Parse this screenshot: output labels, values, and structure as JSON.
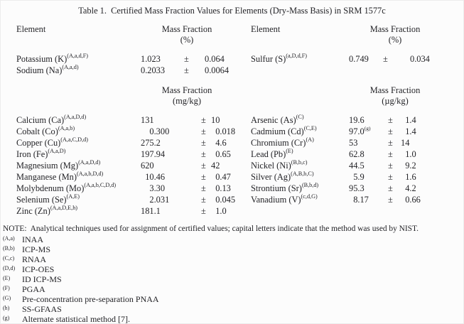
{
  "title": "Table 1.  Certified Mass Fraction Values for Elements (Dry-Mass Basis) in SRM 1577c",
  "headers": {
    "element_label": "Element",
    "mass_fraction_label": "Mass Fraction",
    "unit_percent": "(%)",
    "unit_mg": "(mg/kg)",
    "unit_ug": "(µg/kg)"
  },
  "percent_left_rows": [
    {
      "name": "Potassium (K)",
      "sup": "(A,a,d,F)",
      "value": "1.023",
      "pm": "±",
      "unc": "0.064"
    },
    {
      "name": "Sodium (Na)",
      "sup": "(A,a,d)",
      "value": "0.2033",
      "pm": "±",
      "unc": "0.0064"
    }
  ],
  "percent_right_rows": [
    {
      "name": "Sulfur (S)",
      "sup": "(a,D,d,F)",
      "value": "0.749",
      "pm": "±",
      "unc": "0.034"
    }
  ],
  "mg_left_rows": [
    {
      "name": "Calcium (Ca)",
      "sup": "(A,a,D,d)",
      "value": "131",
      "pm": "±",
      "unc": "10"
    },
    {
      "name": "Cobalt (Co)",
      "sup": "(A,a,b)",
      "value": "0.300",
      "pm": "±",
      "unc": "0.018"
    },
    {
      "name": "Copper (Cu)",
      "sup": "(A,a,C,D,d)",
      "value": "275.2",
      "pm": "±",
      "unc": "4.6"
    },
    {
      "name": "Iron (Fe)",
      "sup": "(A,a,D)",
      "value": "197.94",
      "pm": "±",
      "unc": "0.65"
    },
    {
      "name": "Magnesium (Mg)",
      "sup": "(A,a,D,d)",
      "value": "620",
      "pm": "±",
      "unc": "42"
    },
    {
      "name": "Manganese (Mn)",
      "sup": "(A,a,b,D,d)",
      "value": "10.46",
      "pm": "±",
      "unc": "0.47"
    },
    {
      "name": "Molybdenum (Mo)",
      "sup": "(A,a,b,C,D,d)",
      "value": "3.30",
      "pm": "±",
      "unc": "0.13"
    },
    {
      "name": "Selenium (Se)",
      "sup": "(A,E)",
      "value": "2.031",
      "pm": "±",
      "unc": "0.045"
    },
    {
      "name": "Zinc (Zn)",
      "sup": "(A,a,D,E,h)",
      "value": "181.1",
      "pm": "±",
      "unc": "1.0"
    }
  ],
  "ug_right_rows": [
    {
      "name": "Arsenic (As)",
      "sup": "(C)",
      "value": "19.6",
      "vsup": "",
      "pm": "±",
      "unc": "1.4"
    },
    {
      "name": "Cadmium (Cd)",
      "sup": "(C,E)",
      "value": "97.0",
      "vsup": "(g)",
      "pm": "±",
      "unc": "1.4"
    },
    {
      "name": "Chromium (Cr)",
      "sup": "(A)",
      "value": "53",
      "vsup": "",
      "pm": "±",
      "unc": "14"
    },
    {
      "name": "Lead (Pb)",
      "sup": "(E)",
      "value": "62.8",
      "vsup": "",
      "pm": "±",
      "unc": "1.0"
    },
    {
      "name": "Nickel (Ni)",
      "sup": "(B,b,c)",
      "value": "44.5",
      "vsup": "",
      "pm": "±",
      "unc": "9.2"
    },
    {
      "name": "Silver (Ag)",
      "sup": "(A,B,b,C)",
      "value": "5.9",
      "vsup": "",
      "pm": "±",
      "unc": "1.6"
    },
    {
      "name": "Strontium (Sr)",
      "sup": "(B,b,d)",
      "value": "95.3",
      "vsup": "",
      "pm": "±",
      "unc": "4.2"
    },
    {
      "name": "Vanadium (V)",
      "sup": "(c,d,G)",
      "value": "8.17",
      "vsup": "",
      "pm": "±",
      "unc": "0.66"
    }
  ],
  "note": {
    "text": "NOTE:  Analytical techniques used for assignment of certified values; capital letters indicate that the method was used by NIST.",
    "footnotes": [
      {
        "marker": "(A,a)",
        "label": "INAA"
      },
      {
        "marker": "(B,b)",
        "label": "ICP-MS"
      },
      {
        "marker": "(C,c)",
        "label": "RNAA"
      },
      {
        "marker": "(D,d)",
        "label": "ICP-OES"
      },
      {
        "marker": "(E)",
        "label": "ID ICP-MS"
      },
      {
        "marker": "(F)",
        "label": "PGAA"
      },
      {
        "marker": "(G)",
        "label": "Pre-concentration pre-separation PNAA"
      },
      {
        "marker": "(h)",
        "label": "SS-GFAAS"
      },
      {
        "marker": "(g)",
        "label": "Alternate statistical method [7]."
      }
    ]
  }
}
